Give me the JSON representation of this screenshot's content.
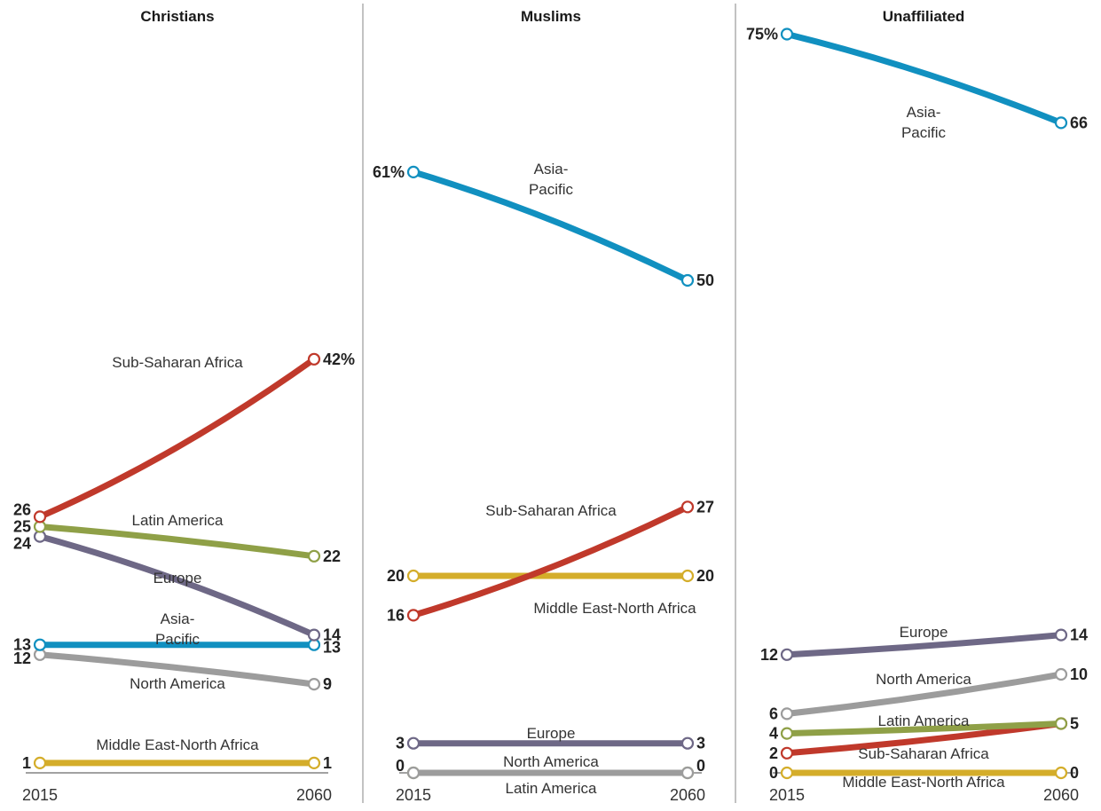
{
  "chart_data": [
    {
      "type": "line",
      "title": "Christians",
      "x": [
        "2015",
        "2060"
      ],
      "ylim": [
        0,
        75
      ],
      "series": [
        {
          "name": "Sub-Saharan Africa",
          "color": "#c0392b",
          "values": [
            26,
            42
          ],
          "start_label": "26",
          "end_label": "42%"
        },
        {
          "name": "Latin America",
          "color": "#8fa047",
          "values": [
            25,
            22
          ],
          "start_label": "25",
          "end_label": "22"
        },
        {
          "name": "Europe",
          "color": "#6e6886",
          "values": [
            24,
            14
          ],
          "start_label": "24",
          "end_label": "14"
        },
        {
          "name": "Asia-\nPacific",
          "color": "#1190c0",
          "values": [
            13,
            13
          ],
          "start_label": "13",
          "end_label": "13"
        },
        {
          "name": "North America",
          "color": "#9c9c9c",
          "values": [
            12,
            9
          ],
          "start_label": "12",
          "end_label": "9"
        },
        {
          "name": "Middle East-North Africa",
          "color": "#d4ad2a",
          "values": [
            1,
            1
          ],
          "start_label": "1",
          "end_label": "1"
        }
      ]
    },
    {
      "type": "line",
      "title": "Muslims",
      "x": [
        "2015",
        "2060"
      ],
      "ylim": [
        0,
        75
      ],
      "series": [
        {
          "name": "Asia-\nPacific",
          "color": "#1190c0",
          "values": [
            61,
            50
          ],
          "start_label": "61%",
          "end_label": "50"
        },
        {
          "name": "Sub-Saharan Africa",
          "color": "#c0392b",
          "values": [
            16,
            27
          ],
          "start_label": "16",
          "end_label": "27"
        },
        {
          "name": "Middle East-North Africa",
          "color": "#d4ad2a",
          "values": [
            20,
            20
          ],
          "start_label": "20",
          "end_label": "20"
        },
        {
          "name": "Europe",
          "color": "#6e6886",
          "values": [
            3,
            3
          ],
          "start_label": "3",
          "end_label": "3"
        },
        {
          "name": "North America",
          "color": "#9c9c9c",
          "values": [
            0,
            0
          ],
          "start_label": "0",
          "end_label": "0"
        },
        {
          "name": "Latin America",
          "color": "#8fa047",
          "values": [
            0,
            0
          ],
          "start_label": "",
          "end_label": ""
        }
      ]
    },
    {
      "type": "line",
      "title": "Unaffiliated",
      "x": [
        "2015",
        "2060"
      ],
      "ylim": [
        0,
        75
      ],
      "series": [
        {
          "name": "Asia-\nPacific",
          "color": "#1190c0",
          "values": [
            75,
            66
          ],
          "start_label": "75%",
          "end_label": "66"
        },
        {
          "name": "Europe",
          "color": "#6e6886",
          "values": [
            12,
            14
          ],
          "start_label": "12",
          "end_label": "14"
        },
        {
          "name": "North America",
          "color": "#9c9c9c",
          "values": [
            6,
            10
          ],
          "start_label": "6",
          "end_label": "10"
        },
        {
          "name": "Latin America",
          "color": "#8fa047",
          "values": [
            4,
            5
          ],
          "start_label": "4",
          "end_label": ""
        },
        {
          "name": "Sub-Saharan Africa",
          "color": "#c0392b",
          "values": [
            2,
            5
          ],
          "start_label": "2",
          "end_label": "5"
        },
        {
          "name": "Middle East-North Africa",
          "color": "#d4ad2a",
          "values": [
            0,
            0
          ],
          "start_label": "0",
          "end_label": "0"
        }
      ]
    }
  ]
}
